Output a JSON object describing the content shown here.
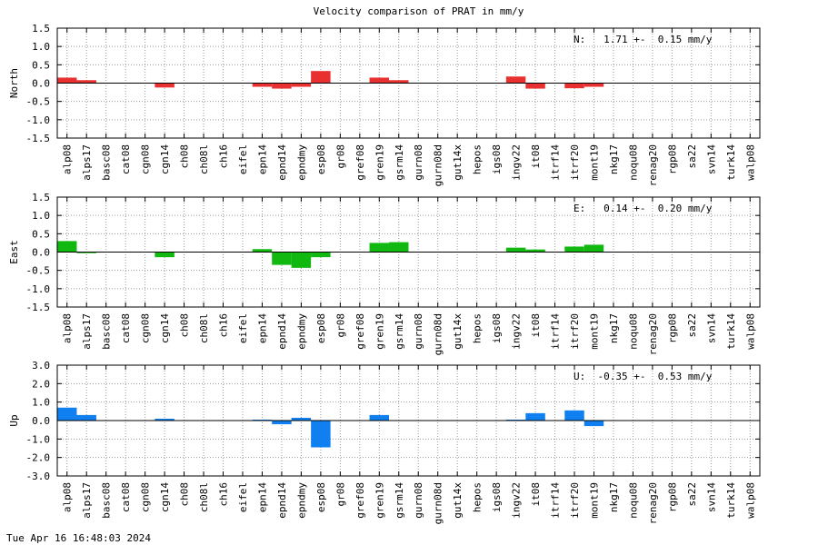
{
  "chart_data": [
    {
      "type": "bar",
      "panel": "north",
      "title": "Velocity comparison of PRAT in mm/y",
      "ylabel": "North",
      "ylim": [
        -1.5,
        1.5
      ],
      "yticks": [
        "1.5",
        "1.0",
        "0.5",
        "0.0",
        "-0.5",
        "-1.0",
        "-1.5"
      ],
      "yticks_values": [
        1.5,
        1.0,
        0.5,
        0.0,
        -0.5,
        -1.0,
        -1.5
      ],
      "grid": true,
      "annotation": "N:   1.71 +-  0.15 mm/y",
      "color": "#e83030",
      "categories": [
        "alp08",
        "alps17",
        "basc08",
        "cat08",
        "cgn08",
        "cgn14",
        "ch08",
        "ch08l",
        "ch16",
        "eifel",
        "epn14",
        "epnd14",
        "epndmy",
        "esp08",
        "gr08",
        "gref08",
        "gren19",
        "gsrm14",
        "gurn08",
        "gurn08d",
        "gut14x",
        "hepos",
        "igs08",
        "ingv22",
        "it08",
        "itrf14",
        "itrf20",
        "mont19",
        "nkg17",
        "noqu08",
        "renag20",
        "rgp08",
        "sa22",
        "svn14",
        "turk14",
        "walp08"
      ],
      "values": [
        0.15,
        0.08,
        0,
        0,
        0,
        -0.12,
        0,
        0,
        0,
        0,
        -0.1,
        -0.15,
        -0.1,
        0.33,
        0,
        0,
        0.15,
        0.08,
        0,
        0,
        0,
        0,
        0,
        0.18,
        -0.15,
        0,
        -0.14,
        -0.1,
        0,
        0,
        0,
        0,
        0,
        0,
        0,
        0
      ]
    },
    {
      "type": "bar",
      "panel": "east",
      "ylabel": "East",
      "ylim": [
        -1.5,
        1.5
      ],
      "yticks": [
        "1.5",
        "1.0",
        "0.5",
        "0.0",
        "-0.5",
        "-1.0",
        "-1.5"
      ],
      "yticks_values": [
        1.5,
        1.0,
        0.5,
        0.0,
        -0.5,
        -1.0,
        -1.5
      ],
      "grid": true,
      "annotation": "E:   0.14 +-  0.20 mm/y",
      "color": "#10b810",
      "categories": [
        "alp08",
        "alps17",
        "basc08",
        "cat08",
        "cgn08",
        "cgn14",
        "ch08",
        "ch08l",
        "ch16",
        "eifel",
        "epn14",
        "epnd14",
        "epndmy",
        "esp08",
        "gr08",
        "gref08",
        "gren19",
        "gsrm14",
        "gurn08",
        "gurn08d",
        "gut14x",
        "hepos",
        "igs08",
        "ingv22",
        "it08",
        "itrf14",
        "itrf20",
        "mont19",
        "nkg17",
        "noqu08",
        "renag20",
        "rgp08",
        "sa22",
        "svn14",
        "turk14",
        "walp08"
      ],
      "values": [
        0.3,
        -0.03,
        0,
        0,
        0,
        -0.14,
        0,
        0,
        0,
        0,
        0.08,
        -0.35,
        -0.43,
        -0.14,
        0,
        0,
        0.25,
        0.27,
        0,
        0,
        0,
        0,
        0,
        0.12,
        0.07,
        0,
        0.15,
        0.2,
        0,
        0,
        0,
        0,
        0,
        0,
        0,
        0
      ]
    },
    {
      "type": "bar",
      "panel": "up",
      "ylabel": "Up",
      "ylim": [
        -3.0,
        3.0
      ],
      "yticks": [
        "3.0",
        "2.0",
        "1.0",
        "0.0",
        "-1.0",
        "-2.0",
        "-3.0"
      ],
      "yticks_values": [
        3.0,
        2.0,
        1.0,
        0.0,
        -1.0,
        -2.0,
        -3.0
      ],
      "grid": true,
      "annotation": "U:  -0.35 +-  0.53 mm/y",
      "color": "#1080f0",
      "categories": [
        "alp08",
        "alps17",
        "basc08",
        "cat08",
        "cgn08",
        "cgn14",
        "ch08",
        "ch08l",
        "ch16",
        "eifel",
        "epn14",
        "epnd14",
        "epndmy",
        "esp08",
        "gr08",
        "gref08",
        "gren19",
        "gsrm14",
        "gurn08",
        "gurn08d",
        "gut14x",
        "hepos",
        "igs08",
        "ingv22",
        "it08",
        "itrf14",
        "itrf20",
        "mont19",
        "nkg17",
        "noqu08",
        "renag20",
        "rgp08",
        "sa22",
        "svn14",
        "turk14",
        "walp08"
      ],
      "values": [
        0.7,
        0.3,
        0,
        0,
        0,
        0.1,
        0,
        0,
        0,
        0,
        0.05,
        -0.2,
        0.15,
        -1.45,
        0,
        0,
        0.3,
        0,
        0,
        0,
        0,
        0,
        0,
        0.05,
        0.4,
        0,
        0.55,
        -0.3,
        0,
        0,
        0,
        0,
        0,
        0,
        0,
        0
      ]
    }
  ],
  "footer": {
    "timestamp": "Tue Apr 16 16:48:03 2024"
  }
}
